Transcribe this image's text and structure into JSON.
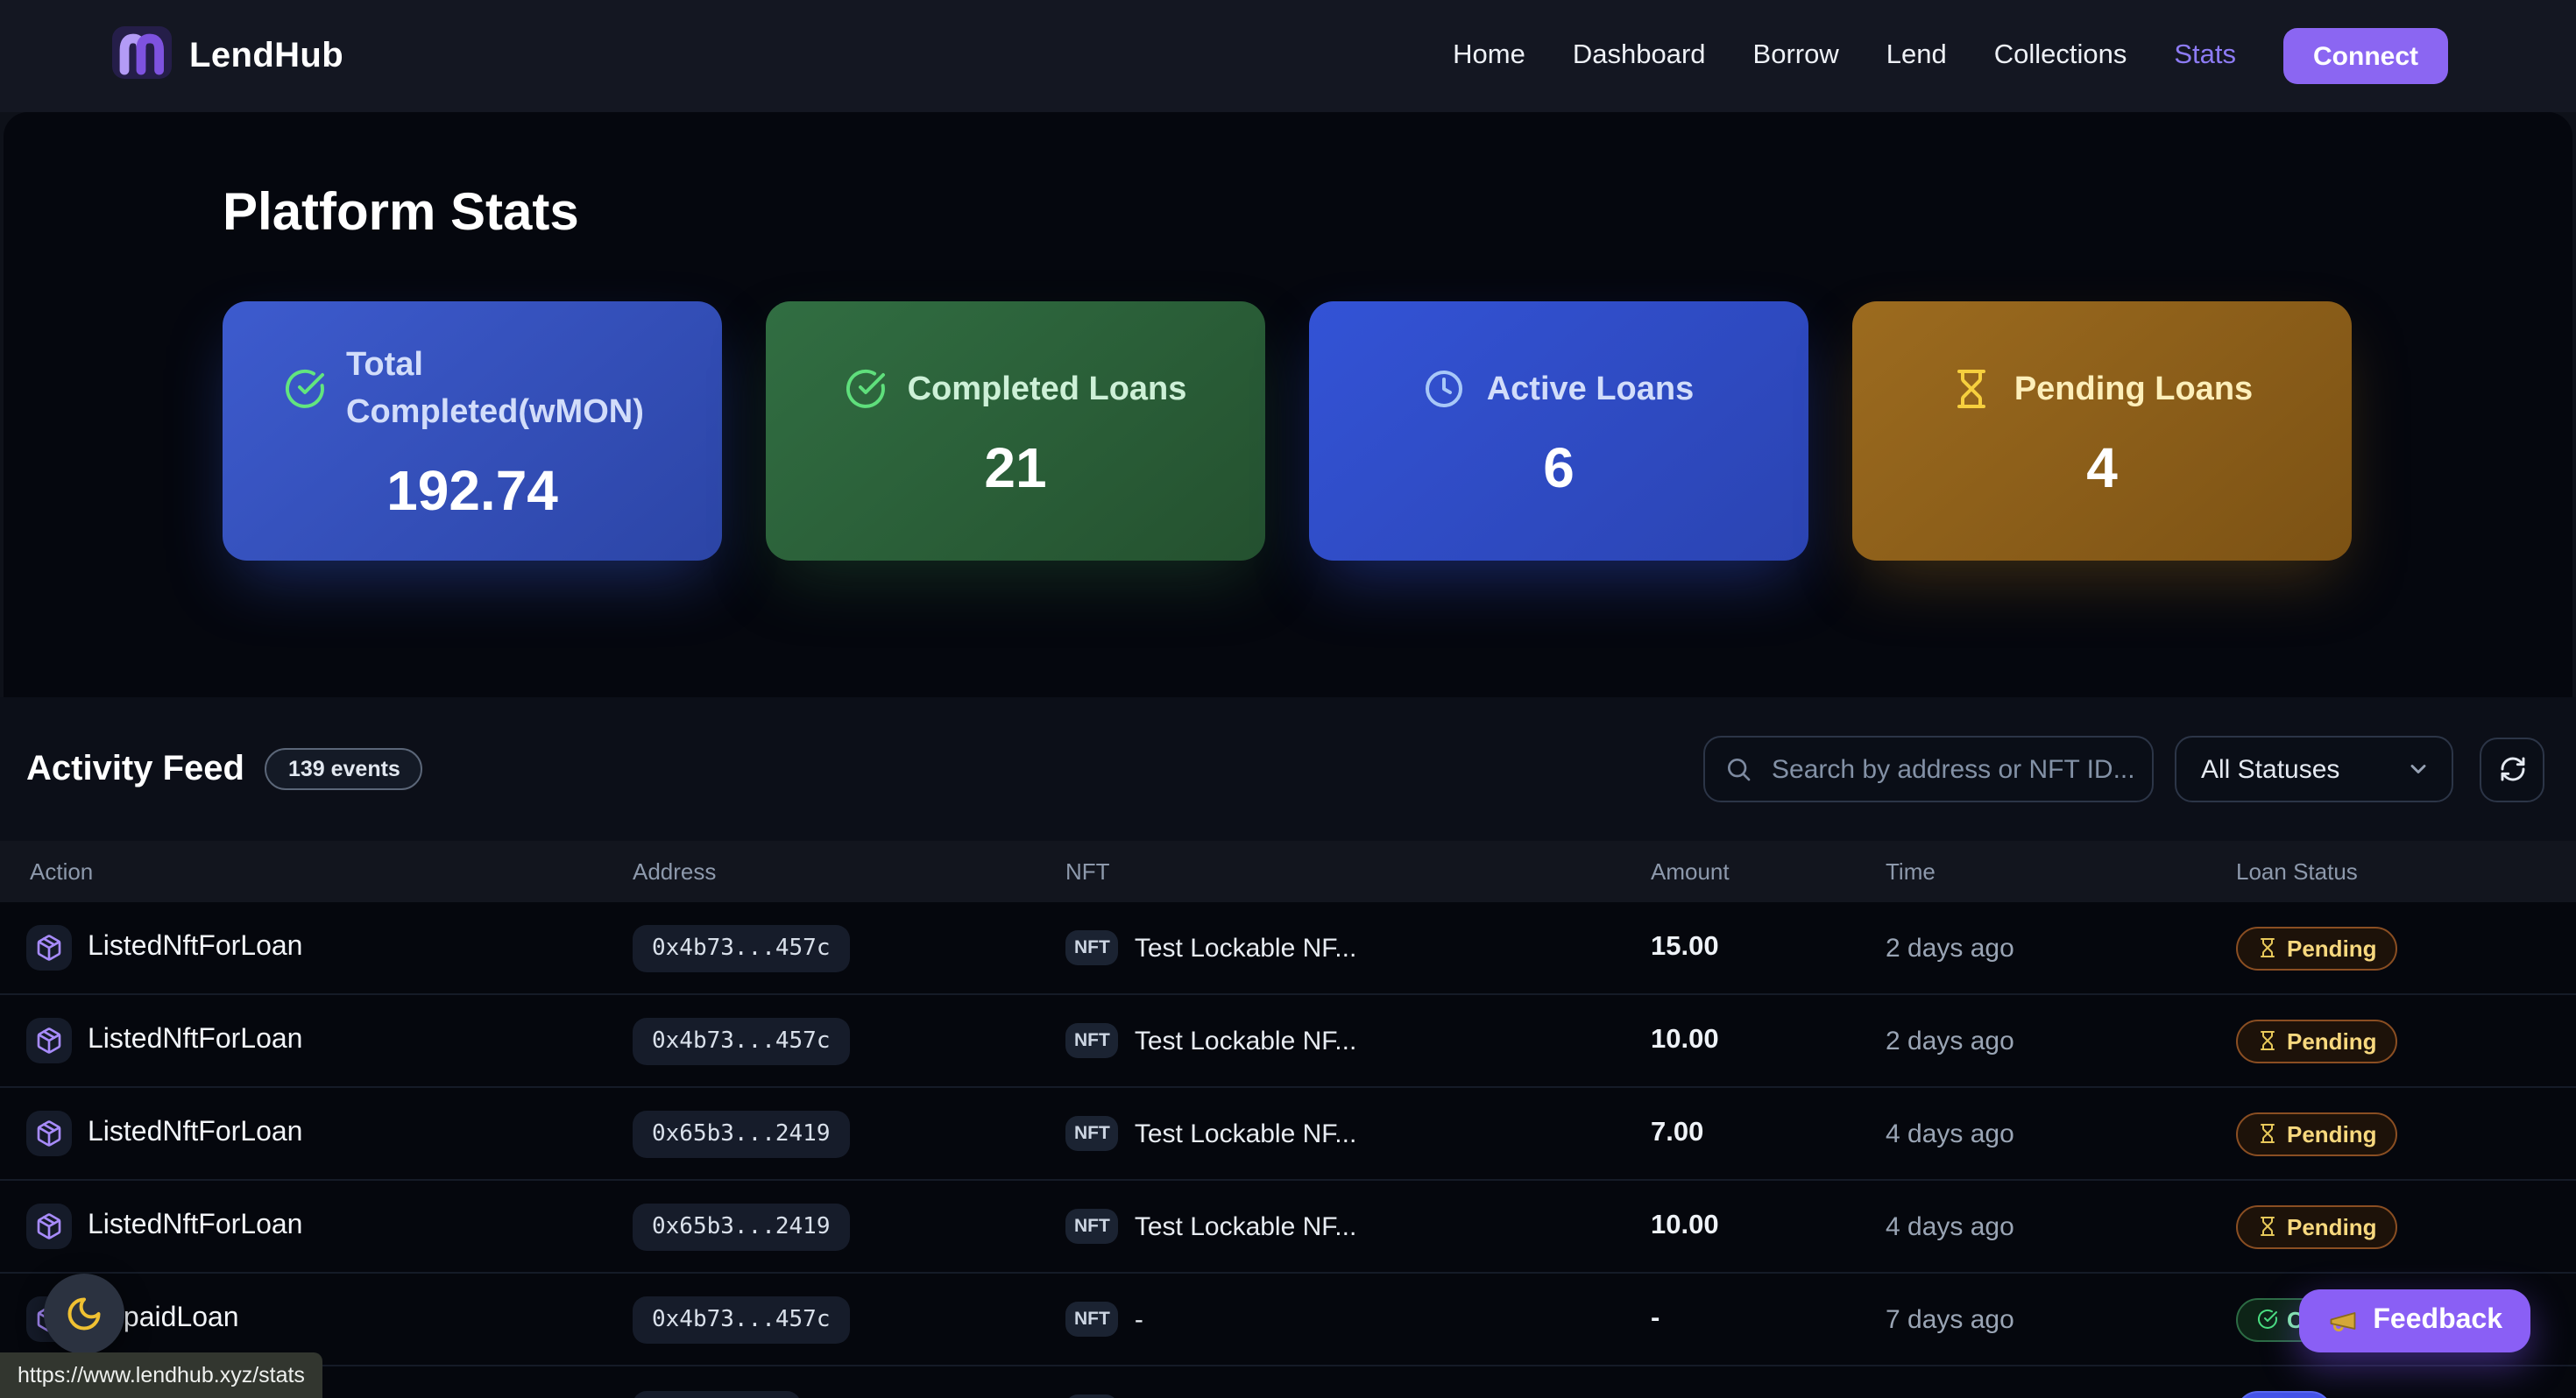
{
  "nav": {
    "brand": "LendHub",
    "links": [
      "Home",
      "Dashboard",
      "Borrow",
      "Lend",
      "Collections",
      "Stats"
    ],
    "active_link": "Stats",
    "connect_label": "Connect"
  },
  "hero": {
    "title": "Platform Stats",
    "cards": [
      {
        "label": "Total Completed(wMON)",
        "value": "192.74",
        "icon": "check-circle",
        "style": "blue"
      },
      {
        "label": "Completed Loans",
        "value": "21",
        "icon": "check-circle",
        "style": "green"
      },
      {
        "label": "Active Loans",
        "value": "6",
        "icon": "clock",
        "style": "blue-bright"
      },
      {
        "label": "Pending Loans",
        "value": "4",
        "icon": "hourglass",
        "style": "amber"
      }
    ]
  },
  "feed": {
    "title": "Activity Feed",
    "badge": "139 events",
    "search_placeholder": "Search by address or NFT ID...",
    "status_filter": "All Statuses",
    "columns": [
      "Action",
      "Address",
      "NFT",
      "Amount",
      "Time",
      "Loan Status"
    ],
    "rows": [
      {
        "action": "ListedNftForLoan",
        "address": "0x4b73...457c",
        "nft_tag": "NFT",
        "nft": "Test Lockable NF...",
        "amount": "15.00",
        "time": "2 days ago",
        "status": "Pending",
        "status_style": "pending",
        "icon": "package"
      },
      {
        "action": "ListedNftForLoan",
        "address": "0x4b73...457c",
        "nft_tag": "NFT",
        "nft": "Test Lockable NF...",
        "amount": "10.00",
        "time": "2 days ago",
        "status": "Pending",
        "status_style": "pending",
        "icon": "package"
      },
      {
        "action": "ListedNftForLoan",
        "address": "0x65b3...2419",
        "nft_tag": "NFT",
        "nft": "Test Lockable NF...",
        "amount": "7.00",
        "time": "4 days ago",
        "status": "Pending",
        "status_style": "pending",
        "icon": "package"
      },
      {
        "action": "ListedNftForLoan",
        "address": "0x65b3...2419",
        "nft_tag": "NFT",
        "nft": "Test Lockable NF...",
        "amount": "10.00",
        "time": "4 days ago",
        "status": "Pending",
        "status_style": "pending",
        "icon": "package"
      },
      {
        "action": "RepaidLoan",
        "address": "0x4b73...457c",
        "nft_tag": "NFT",
        "nft": "-",
        "amount": "-",
        "time": "7 days ago",
        "status": "Completed",
        "status_style": "completed",
        "icon": "package"
      },
      {
        "action": "",
        "address": "",
        "nft_tag": "NFT",
        "nft": "",
        "amount": "",
        "time": "",
        "status": "",
        "status_style": "active",
        "icon": "package",
        "partial": true
      }
    ]
  },
  "overlays": {
    "url_tooltip": "https://www.lendhub.xyz/stats",
    "feedback_label": "Feedback"
  },
  "colors": {
    "accent_purple": "#8b66f2",
    "nav_active": "#8d7bf4",
    "card_blue": "#3d5bce",
    "card_green": "#316e42",
    "card_blue_bright": "#3353d6",
    "card_amber": "#9c6b1f",
    "pending_text": "#f7d87e",
    "completed_text": "#86efac",
    "moon_icon": "#f0c132",
    "nav_bg": "#141722",
    "hero_bg": "#05070e",
    "table_bg": "#05070d"
  }
}
